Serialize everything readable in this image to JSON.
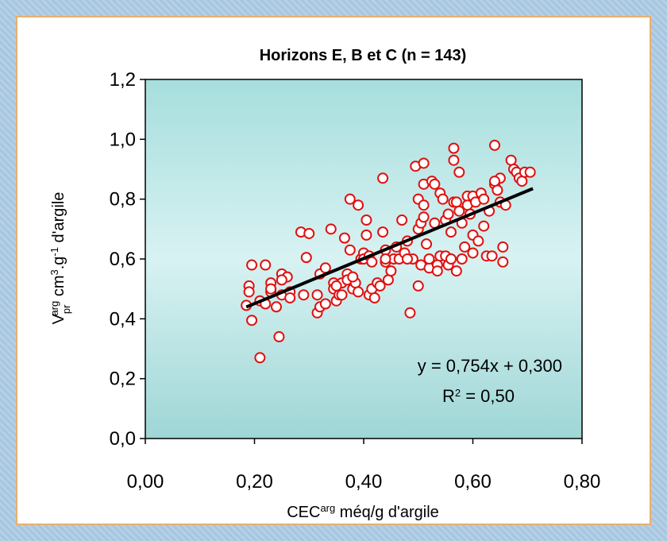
{
  "chart_data": {
    "type": "scatter",
    "title": "Horizons E, B et C (n = 143)",
    "xlabel": {
      "main": "CEC",
      "sup": "arg",
      "rest": " méq/g d'argile"
    },
    "ylabel": {
      "v": "V",
      "sub": "pr",
      "sup": "arg",
      "unit": " cm",
      "sup3": "3",
      "g": ".g",
      "supm1": "-1",
      "rest": " d'argile"
    },
    "xlim": [
      0,
      0.8
    ],
    "ylim": [
      0,
      1.2
    ],
    "xticks": [
      "0,00",
      "0,20",
      "0,40",
      "0,60",
      "0,80"
    ],
    "xtick_values": [
      0,
      0.2,
      0.4,
      0.6,
      0.8
    ],
    "yticks": [
      "0,0",
      "0,2",
      "0,4",
      "0,6",
      "0,8",
      "1,0",
      "1,2"
    ],
    "ytick_values": [
      0,
      0.2,
      0.4,
      0.6,
      0.8,
      1.0,
      1.2
    ],
    "grid": false,
    "plot_background": "#bfe6e6",
    "marker_color": "#e01010",
    "line_color": "#000000",
    "equation": "y = 0,754x + 0,300",
    "r2_label": "R",
    "r2_sup": "2",
    "r2_value": " = 0,50",
    "trendline": {
      "slope": 0.754,
      "intercept": 0.3,
      "x_start": 0.185,
      "x_end": 0.71
    },
    "points": [
      [
        0.185,
        0.445
      ],
      [
        0.19,
        0.51
      ],
      [
        0.19,
        0.49
      ],
      [
        0.195,
        0.58
      ],
      [
        0.195,
        0.395
      ],
      [
        0.21,
        0.27
      ],
      [
        0.21,
        0.46
      ],
      [
        0.22,
        0.58
      ],
      [
        0.22,
        0.45
      ],
      [
        0.23,
        0.52
      ],
      [
        0.23,
        0.49
      ],
      [
        0.24,
        0.44
      ],
      [
        0.245,
        0.34
      ],
      [
        0.25,
        0.55
      ],
      [
        0.25,
        0.48
      ],
      [
        0.26,
        0.54
      ],
      [
        0.265,
        0.49
      ],
      [
        0.265,
        0.47
      ],
      [
        0.285,
        0.69
      ],
      [
        0.295,
        0.605
      ],
      [
        0.3,
        0.685
      ],
      [
        0.315,
        0.48
      ],
      [
        0.315,
        0.42
      ],
      [
        0.32,
        0.44
      ],
      [
        0.32,
        0.55
      ],
      [
        0.33,
        0.57
      ],
      [
        0.34,
        0.7
      ],
      [
        0.345,
        0.52
      ],
      [
        0.345,
        0.5
      ],
      [
        0.35,
        0.46
      ],
      [
        0.355,
        0.48
      ],
      [
        0.36,
        0.52
      ],
      [
        0.36,
        0.48
      ],
      [
        0.365,
        0.67
      ],
      [
        0.37,
        0.55
      ],
      [
        0.37,
        0.53
      ],
      [
        0.375,
        0.8
      ],
      [
        0.375,
        0.63
      ],
      [
        0.38,
        0.5
      ],
      [
        0.385,
        0.52
      ],
      [
        0.39,
        0.78
      ],
      [
        0.39,
        0.49
      ],
      [
        0.395,
        0.6
      ],
      [
        0.4,
        0.62
      ],
      [
        0.4,
        0.6
      ],
      [
        0.405,
        0.73
      ],
      [
        0.405,
        0.68
      ],
      [
        0.41,
        0.61
      ],
      [
        0.41,
        0.48
      ],
      [
        0.415,
        0.59
      ],
      [
        0.415,
        0.5
      ],
      [
        0.42,
        0.47
      ],
      [
        0.425,
        0.52
      ],
      [
        0.43,
        0.51
      ],
      [
        0.435,
        0.87
      ],
      [
        0.435,
        0.69
      ],
      [
        0.44,
        0.63
      ],
      [
        0.44,
        0.59
      ],
      [
        0.445,
        0.53
      ],
      [
        0.45,
        0.56
      ],
      [
        0.455,
        0.6
      ],
      [
        0.46,
        0.64
      ],
      [
        0.465,
        0.6
      ],
      [
        0.47,
        0.73
      ],
      [
        0.475,
        0.62
      ],
      [
        0.48,
        0.66
      ],
      [
        0.485,
        0.42
      ],
      [
        0.49,
        0.6
      ],
      [
        0.495,
        0.91
      ],
      [
        0.5,
        0.8
      ],
      [
        0.5,
        0.7
      ],
      [
        0.5,
        0.51
      ],
      [
        0.505,
        0.72
      ],
      [
        0.505,
        0.58
      ],
      [
        0.51,
        0.92
      ],
      [
        0.51,
        0.85
      ],
      [
        0.51,
        0.78
      ],
      [
        0.51,
        0.74
      ],
      [
        0.515,
        0.65
      ],
      [
        0.52,
        0.57
      ],
      [
        0.525,
        0.86
      ],
      [
        0.53,
        0.85
      ],
      [
        0.53,
        0.72
      ],
      [
        0.535,
        0.58
      ],
      [
        0.535,
        0.56
      ],
      [
        0.54,
        0.82
      ],
      [
        0.54,
        0.61
      ],
      [
        0.545,
        0.8
      ],
      [
        0.55,
        0.73
      ],
      [
        0.55,
        0.61
      ],
      [
        0.555,
        0.75
      ],
      [
        0.555,
        0.58
      ],
      [
        0.56,
        0.69
      ],
      [
        0.56,
        0.6
      ],
      [
        0.565,
        0.97
      ],
      [
        0.565,
        0.93
      ],
      [
        0.565,
        0.79
      ],
      [
        0.57,
        0.56
      ],
      [
        0.57,
        0.79
      ],
      [
        0.575,
        0.76
      ],
      [
        0.575,
        0.89
      ],
      [
        0.58,
        0.72
      ],
      [
        0.585,
        0.64
      ],
      [
        0.59,
        0.81
      ],
      [
        0.59,
        0.78
      ],
      [
        0.595,
        0.75
      ],
      [
        0.6,
        0.81
      ],
      [
        0.6,
        0.68
      ],
      [
        0.6,
        0.62
      ],
      [
        0.605,
        0.79
      ],
      [
        0.61,
        0.66
      ],
      [
        0.615,
        0.82
      ],
      [
        0.62,
        0.71
      ],
      [
        0.625,
        0.61
      ],
      [
        0.63,
        0.76
      ],
      [
        0.635,
        0.61
      ],
      [
        0.64,
        0.98
      ],
      [
        0.64,
        0.85
      ],
      [
        0.645,
        0.83
      ],
      [
        0.65,
        0.87
      ],
      [
        0.65,
        0.79
      ],
      [
        0.655,
        0.64
      ],
      [
        0.655,
        0.59
      ],
      [
        0.66,
        0.78
      ],
      [
        0.67,
        0.93
      ],
      [
        0.675,
        0.9
      ],
      [
        0.68,
        0.89
      ],
      [
        0.685,
        0.87
      ],
      [
        0.69,
        0.86
      ],
      [
        0.695,
        0.89
      ],
      [
        0.705,
        0.89
      ],
      [
        0.44,
        0.6
      ],
      [
        0.35,
        0.51
      ],
      [
        0.25,
        0.53
      ],
      [
        0.33,
        0.45
      ],
      [
        0.48,
        0.6
      ],
      [
        0.52,
        0.6
      ],
      [
        0.58,
        0.6
      ],
      [
        0.62,
        0.8
      ],
      [
        0.64,
        0.86
      ],
      [
        0.23,
        0.5
      ],
      [
        0.29,
        0.48
      ],
      [
        0.38,
        0.54
      ]
    ]
  }
}
